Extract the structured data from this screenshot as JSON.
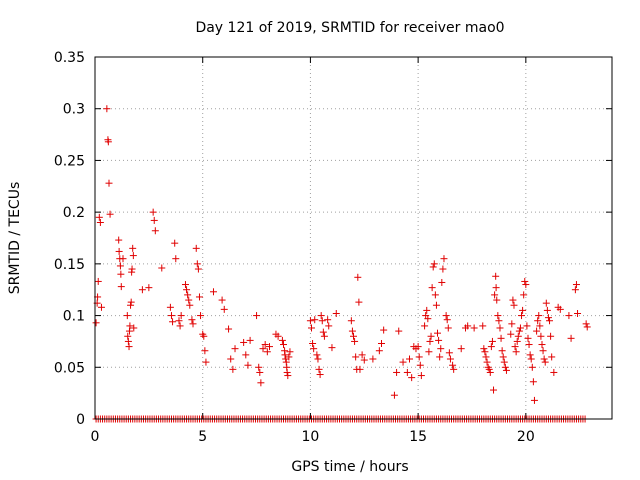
{
  "chart_data": {
    "type": "scatter",
    "title": "Day 121 of 2019, SRMTID for receiver mao0",
    "xlabel": "GPS time / hours",
    "ylabel": "SRMTID / TECUs",
    "xlim": [
      0,
      24
    ],
    "ylim": [
      0,
      0.35
    ],
    "x_ticks": [
      0,
      5,
      10,
      15,
      20
    ],
    "x_tick_labels": [
      "0",
      "5",
      "10",
      "15",
      "20"
    ],
    "y_ticks": [
      0,
      0.05,
      0.1,
      0.15,
      0.2,
      0.25,
      0.3,
      0.35
    ],
    "y_tick_labels": [
      "0",
      "0.05",
      "0.1",
      "0.15",
      "0.2",
      "0.25",
      "0.3",
      "0.35"
    ],
    "grid": true,
    "marker": "plus",
    "series": [
      {
        "name": "SRMTID",
        "color": "#e00000",
        "points": [
          [
            0.05,
            0.093
          ],
          [
            0.1,
            0.112
          ],
          [
            0.12,
            0.118
          ],
          [
            0.15,
            0.133
          ],
          [
            0.2,
            0.195
          ],
          [
            0.25,
            0.19
          ],
          [
            0.3,
            0.108
          ],
          [
            0.55,
            0.3
          ],
          [
            0.6,
            0.27
          ],
          [
            0.62,
            0.268
          ],
          [
            0.65,
            0.228
          ],
          [
            0.7,
            0.198
          ],
          [
            1.1,
            0.173
          ],
          [
            1.12,
            0.162
          ],
          [
            1.15,
            0.155
          ],
          [
            1.18,
            0.148
          ],
          [
            1.2,
            0.14
          ],
          [
            1.22,
            0.128
          ],
          [
            1.3,
            0.155
          ],
          [
            1.5,
            0.1
          ],
          [
            1.52,
            0.08
          ],
          [
            1.55,
            0.075
          ],
          [
            1.58,
            0.07
          ],
          [
            1.6,
            0.085
          ],
          [
            1.62,
            0.09
          ],
          [
            1.65,
            0.11
          ],
          [
            1.68,
            0.113
          ],
          [
            1.7,
            0.142
          ],
          [
            1.72,
            0.145
          ],
          [
            1.75,
            0.165
          ],
          [
            1.78,
            0.158
          ],
          [
            1.8,
            0.088
          ],
          [
            2.2,
            0.125
          ],
          [
            2.5,
            0.127
          ],
          [
            2.7,
            0.2
          ],
          [
            2.75,
            0.192
          ],
          [
            2.8,
            0.182
          ],
          [
            3.1,
            0.146
          ],
          [
            3.5,
            0.108
          ],
          [
            3.55,
            0.1
          ],
          [
            3.6,
            0.094
          ],
          [
            3.7,
            0.17
          ],
          [
            3.75,
            0.155
          ],
          [
            3.9,
            0.095
          ],
          [
            3.95,
            0.09
          ],
          [
            4.0,
            0.1
          ],
          [
            4.2,
            0.13
          ],
          [
            4.25,
            0.125
          ],
          [
            4.3,
            0.12
          ],
          [
            4.35,
            0.115
          ],
          [
            4.4,
            0.11
          ],
          [
            4.5,
            0.096
          ],
          [
            4.55,
            0.092
          ],
          [
            4.7,
            0.165
          ],
          [
            4.75,
            0.15
          ],
          [
            4.8,
            0.145
          ],
          [
            4.85,
            0.118
          ],
          [
            4.9,
            0.1
          ],
          [
            5.0,
            0.082
          ],
          [
            5.05,
            0.08
          ],
          [
            5.1,
            0.066
          ],
          [
            5.15,
            0.055
          ],
          [
            5.5,
            0.123
          ],
          [
            5.9,
            0.115
          ],
          [
            6.0,
            0.106
          ],
          [
            6.2,
            0.087
          ],
          [
            6.3,
            0.058
          ],
          [
            6.4,
            0.048
          ],
          [
            6.5,
            0.068
          ],
          [
            6.9,
            0.074
          ],
          [
            7.0,
            0.062
          ],
          [
            7.1,
            0.052
          ],
          [
            7.2,
            0.076
          ],
          [
            7.5,
            0.1
          ],
          [
            7.6,
            0.05
          ],
          [
            7.65,
            0.045
          ],
          [
            7.7,
            0.035
          ],
          [
            7.8,
            0.068
          ],
          [
            7.9,
            0.072
          ],
          [
            8.0,
            0.065
          ],
          [
            8.1,
            0.07
          ],
          [
            8.4,
            0.082
          ],
          [
            8.5,
            0.08
          ],
          [
            8.7,
            0.076
          ],
          [
            8.75,
            0.072
          ],
          [
            8.8,
            0.066
          ],
          [
            8.82,
            0.062
          ],
          [
            8.85,
            0.058
          ],
          [
            8.88,
            0.055
          ],
          [
            8.9,
            0.05
          ],
          [
            8.92,
            0.045
          ],
          [
            8.95,
            0.042
          ],
          [
            9.0,
            0.06
          ],
          [
            9.05,
            0.065
          ],
          [
            10.0,
            0.095
          ],
          [
            10.05,
            0.088
          ],
          [
            10.1,
            0.073
          ],
          [
            10.15,
            0.068
          ],
          [
            10.2,
            0.096
          ],
          [
            10.3,
            0.062
          ],
          [
            10.35,
            0.058
          ],
          [
            10.4,
            0.048
          ],
          [
            10.45,
            0.043
          ],
          [
            10.5,
            0.1
          ],
          [
            10.55,
            0.095
          ],
          [
            10.6,
            0.084
          ],
          [
            10.65,
            0.08
          ],
          [
            10.8,
            0.096
          ],
          [
            10.85,
            0.09
          ],
          [
            11.0,
            0.069
          ],
          [
            11.2,
            0.102
          ],
          [
            11.9,
            0.095
          ],
          [
            11.95,
            0.085
          ],
          [
            12.0,
            0.08
          ],
          [
            12.05,
            0.075
          ],
          [
            12.1,
            0.06
          ],
          [
            12.15,
            0.048
          ],
          [
            12.2,
            0.137
          ],
          [
            12.25,
            0.113
          ],
          [
            12.3,
            0.048
          ],
          [
            12.4,
            0.062
          ],
          [
            12.5,
            0.057
          ],
          [
            12.9,
            0.058
          ],
          [
            13.2,
            0.066
          ],
          [
            13.3,
            0.073
          ],
          [
            13.4,
            0.086
          ],
          [
            13.9,
            0.023
          ],
          [
            14.0,
            0.045
          ],
          [
            14.1,
            0.085
          ],
          [
            14.3,
            0.055
          ],
          [
            14.5,
            0.045
          ],
          [
            14.6,
            0.058
          ],
          [
            14.7,
            0.04
          ],
          [
            14.8,
            0.07
          ],
          [
            14.9,
            0.068
          ],
          [
            15.0,
            0.07
          ],
          [
            15.05,
            0.06
          ],
          [
            15.1,
            0.052
          ],
          [
            15.15,
            0.042
          ],
          [
            15.3,
            0.09
          ],
          [
            15.35,
            0.1
          ],
          [
            15.4,
            0.105
          ],
          [
            15.45,
            0.097
          ],
          [
            15.5,
            0.065
          ],
          [
            15.55,
            0.075
          ],
          [
            15.6,
            0.08
          ],
          [
            15.65,
            0.127
          ],
          [
            15.7,
            0.147
          ],
          [
            15.75,
            0.15
          ],
          [
            15.8,
            0.12
          ],
          [
            15.85,
            0.11
          ],
          [
            15.9,
            0.083
          ],
          [
            15.95,
            0.076
          ],
          [
            16.0,
            0.06
          ],
          [
            16.05,
            0.068
          ],
          [
            16.1,
            0.132
          ],
          [
            16.15,
            0.145
          ],
          [
            16.2,
            0.155
          ],
          [
            16.3,
            0.1
          ],
          [
            16.35,
            0.096
          ],
          [
            16.4,
            0.088
          ],
          [
            16.45,
            0.064
          ],
          [
            16.5,
            0.058
          ],
          [
            16.6,
            0.052
          ],
          [
            16.65,
            0.048
          ],
          [
            17.0,
            0.068
          ],
          [
            17.2,
            0.088
          ],
          [
            17.3,
            0.09
          ],
          [
            17.6,
            0.088
          ],
          [
            18.0,
            0.09
          ],
          [
            18.05,
            0.068
          ],
          [
            18.1,
            0.065
          ],
          [
            18.15,
            0.06
          ],
          [
            18.2,
            0.055
          ],
          [
            18.25,
            0.05
          ],
          [
            18.3,
            0.048
          ],
          [
            18.35,
            0.045
          ],
          [
            18.4,
            0.07
          ],
          [
            18.45,
            0.075
          ],
          [
            18.5,
            0.028
          ],
          [
            18.55,
            0.12
          ],
          [
            18.6,
            0.138
          ],
          [
            18.62,
            0.127
          ],
          [
            18.65,
            0.115
          ],
          [
            18.7,
            0.1
          ],
          [
            18.75,
            0.095
          ],
          [
            18.8,
            0.088
          ],
          [
            18.85,
            0.078
          ],
          [
            18.9,
            0.066
          ],
          [
            18.95,
            0.06
          ],
          [
            19.0,
            0.055
          ],
          [
            19.05,
            0.05
          ],
          [
            19.1,
            0.047
          ],
          [
            19.3,
            0.082
          ],
          [
            19.35,
            0.092
          ],
          [
            19.4,
            0.115
          ],
          [
            19.45,
            0.11
          ],
          [
            19.5,
            0.07
          ],
          [
            19.55,
            0.065
          ],
          [
            19.6,
            0.075
          ],
          [
            19.65,
            0.08
          ],
          [
            19.7,
            0.085
          ],
          [
            19.75,
            0.088
          ],
          [
            19.8,
            0.1
          ],
          [
            19.85,
            0.105
          ],
          [
            19.9,
            0.12
          ],
          [
            19.95,
            0.133
          ],
          [
            20.0,
            0.13
          ],
          [
            20.05,
            0.09
          ],
          [
            20.1,
            0.078
          ],
          [
            20.15,
            0.072
          ],
          [
            20.2,
            0.062
          ],
          [
            20.25,
            0.058
          ],
          [
            20.3,
            0.05
          ],
          [
            20.35,
            0.036
          ],
          [
            20.4,
            0.018
          ],
          [
            20.5,
            0.085
          ],
          [
            20.55,
            0.095
          ],
          [
            20.6,
            0.1
          ],
          [
            20.65,
            0.09
          ],
          [
            20.7,
            0.08
          ],
          [
            20.75,
            0.072
          ],
          [
            20.8,
            0.066
          ],
          [
            20.85,
            0.058
          ],
          [
            20.9,
            0.055
          ],
          [
            20.95,
            0.112
          ],
          [
            21.0,
            0.105
          ],
          [
            21.05,
            0.098
          ],
          [
            21.1,
            0.095
          ],
          [
            21.15,
            0.08
          ],
          [
            21.2,
            0.06
          ],
          [
            21.3,
            0.045
          ],
          [
            21.5,
            0.108
          ],
          [
            21.6,
            0.106
          ],
          [
            22.0,
            0.1
          ],
          [
            22.1,
            0.078
          ],
          [
            22.3,
            0.125
          ],
          [
            22.35,
            0.13
          ],
          [
            22.4,
            0.102
          ],
          [
            22.8,
            0.092
          ],
          [
            22.85,
            0.089
          ]
        ],
        "zero_x": [
          0.05,
          0.15,
          0.25,
          0.35,
          0.45,
          0.55,
          0.65,
          0.75,
          0.85,
          0.95,
          1.05,
          1.15,
          1.25,
          1.35,
          1.45,
          1.55,
          1.65,
          1.75,
          1.85,
          1.95,
          2.05,
          2.15,
          2.25,
          2.35,
          2.45,
          2.55,
          2.65,
          2.75,
          2.85,
          2.95,
          3.05,
          3.15,
          3.25,
          3.35,
          3.45,
          3.55,
          3.65,
          3.75,
          3.85,
          3.95,
          4.05,
          4.15,
          4.25,
          4.35,
          4.45,
          4.55,
          4.65,
          4.75,
          4.85,
          4.95,
          5.05,
          5.15,
          5.25,
          5.35,
          5.45,
          5.55,
          5.65,
          5.75,
          5.85,
          5.95,
          6.05,
          6.15,
          6.25,
          6.35,
          6.45,
          6.55,
          6.65,
          6.75,
          6.85,
          6.95,
          7.05,
          7.15,
          7.25,
          7.35,
          7.45,
          7.55,
          7.65,
          7.75,
          7.85,
          7.95,
          8.05,
          8.15,
          8.25,
          8.35,
          8.45,
          8.55,
          8.65,
          8.75,
          8.85,
          8.95,
          9.05,
          9.15,
          9.25,
          9.35,
          9.45,
          9.55,
          9.65,
          9.75,
          9.85,
          9.95,
          10.05,
          10.15,
          10.25,
          10.35,
          10.45,
          10.55,
          10.65,
          10.75,
          10.85,
          10.95,
          11.05,
          11.15,
          11.25,
          11.35,
          11.45,
          11.55,
          11.65,
          11.75,
          11.85,
          11.95,
          12.05,
          12.15,
          12.25,
          12.35,
          12.45,
          12.55,
          12.65,
          12.75,
          12.85,
          12.95,
          13.05,
          13.15,
          13.25,
          13.35,
          13.45,
          13.55,
          13.65,
          13.75,
          13.85,
          13.95,
          14.05,
          14.15,
          14.25,
          14.35,
          14.45,
          14.55,
          14.65,
          14.75,
          14.85,
          14.95,
          15.05,
          15.15,
          15.25,
          15.35,
          15.45,
          15.55,
          15.65,
          15.75,
          15.85,
          15.95,
          16.05,
          16.15,
          16.25,
          16.35,
          16.45,
          16.55,
          16.65,
          16.75,
          16.85,
          16.95,
          17.05,
          17.15,
          17.25,
          17.35,
          17.45,
          17.55,
          17.65,
          17.75,
          17.85,
          17.95,
          18.05,
          18.15,
          18.25,
          18.35,
          18.45,
          18.55,
          18.65,
          18.75,
          18.85,
          18.95,
          19.05,
          19.15,
          19.25,
          19.35,
          19.45,
          19.55,
          19.65,
          19.75,
          19.85,
          19.95,
          20.05,
          20.15,
          20.25,
          20.35,
          20.45,
          20.55,
          20.65,
          20.75,
          20.85,
          20.95,
          21.05,
          21.15,
          21.25,
          21.35,
          21.45,
          21.55,
          21.65,
          21.75,
          21.85,
          21.95,
          22.05,
          22.15,
          22.25,
          22.35,
          22.45,
          22.55,
          22.65,
          22.75
        ]
      }
    ]
  }
}
